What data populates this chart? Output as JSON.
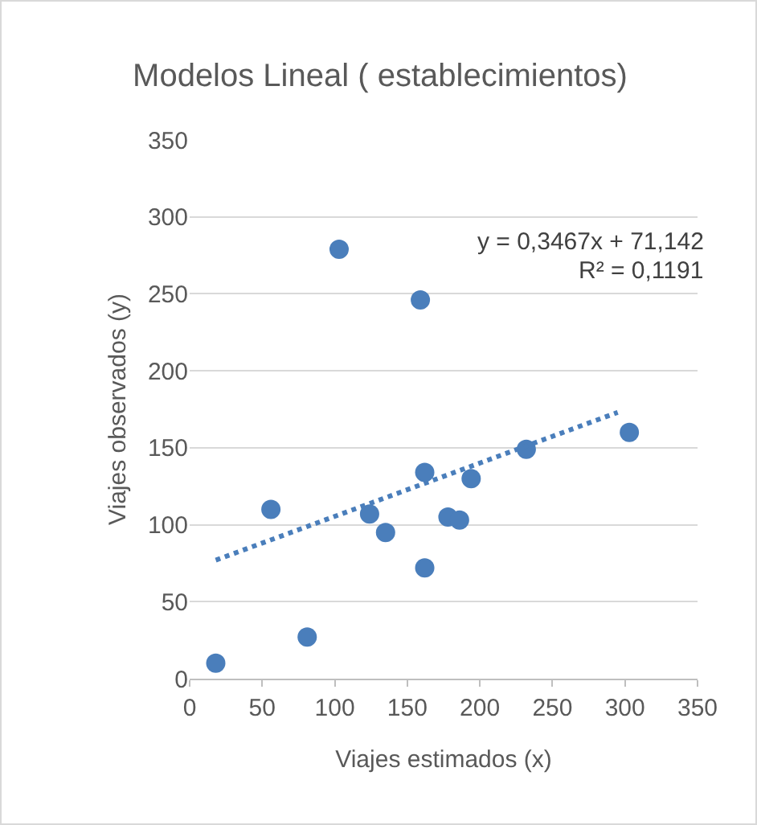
{
  "chart_data": {
    "type": "scatter",
    "title": "Modelos Lineal ( establecimientos)",
    "xlabel": "Viajes estimados (x)",
    "ylabel": "Viajes observados (y)",
    "series": [
      {
        "color": "#4a7ebb",
        "marker": "circle",
        "x": [
          18,
          81,
          56,
          103,
          124,
          135,
          159,
          162,
          162,
          178,
          186,
          194,
          232,
          303
        ],
        "values": [
          10,
          27,
          110,
          279,
          107,
          95,
          246,
          134,
          72,
          105,
          103,
          130,
          149,
          160
        ]
      },
      {
        "type": "line",
        "color": "#4a7ebb",
        "line_style": "dotted",
        "marker": "none",
        "x": [
          18,
          295
        ],
        "values": [
          77,
          173
        ]
      }
    ],
    "xlim": [
      0,
      350
    ],
    "xticks": [
      0,
      50,
      100,
      150,
      200,
      250,
      300,
      350
    ],
    "ylim": [
      0,
      350
    ],
    "yticks": [
      0,
      50,
      100,
      150,
      200,
      250,
      300,
      350
    ],
    "grid": "y",
    "annotations": [
      "y = 0,3467x + 71,142",
      "R² = 0,1191"
    ]
  }
}
